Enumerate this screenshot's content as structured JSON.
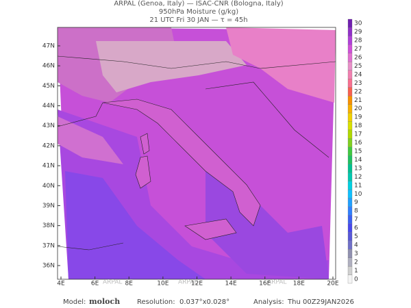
{
  "header": {
    "line1": "ARPAL (Genoa, Italy)  —  ISAC-CNR (Bologna, Italy)",
    "line2": "950hPa Moisture (g/kg)",
    "line3": "21 UTC Fri 30 JAN  —  τ = 45h"
  },
  "map": {
    "lat_ticks": [
      {
        "value": 36,
        "label": "36N"
      },
      {
        "value": 37,
        "label": "37N"
      },
      {
        "value": 38,
        "label": "38N"
      },
      {
        "value": 39,
        "label": "39N"
      },
      {
        "value": 40,
        "label": "40N"
      },
      {
        "value": 41,
        "label": "41N"
      },
      {
        "value": 42,
        "label": "42N"
      },
      {
        "value": 43,
        "label": "43N"
      },
      {
        "value": 44,
        "label": "44N"
      },
      {
        "value": 45,
        "label": "45N"
      },
      {
        "value": 46,
        "label": "46N"
      },
      {
        "value": 47,
        "label": "47N"
      }
    ],
    "lon_ticks": [
      {
        "value": 4,
        "label": "4E"
      },
      {
        "value": 6,
        "label": "6E"
      },
      {
        "value": 8,
        "label": "8E"
      },
      {
        "value": 10,
        "label": "10E"
      },
      {
        "value": 12,
        "label": "12E"
      },
      {
        "value": 14,
        "label": "14E"
      },
      {
        "value": 16,
        "label": "16E"
      },
      {
        "value": 18,
        "label": "18E"
      },
      {
        "value": 20,
        "label": "20E"
      }
    ],
    "watermark": "ARPAL"
  },
  "colorbar": {
    "levels": [
      0,
      1,
      2,
      3,
      4,
      5,
      6,
      7,
      8,
      9,
      10,
      11,
      12,
      13,
      14,
      15,
      16,
      17,
      18,
      19,
      20,
      21,
      22,
      23,
      24,
      25,
      26,
      27,
      28,
      29,
      30
    ],
    "colors": [
      "#f4f4f4",
      "#d0d0d0",
      "#b0b0c0",
      "#9090b0",
      "#7070c8",
      "#5858d8",
      "#4848ec",
      "#3c60f0",
      "#3080ff",
      "#20a0ff",
      "#10c0ff",
      "#00d0e0",
      "#00c8b0",
      "#00c090",
      "#20c060",
      "#40c840",
      "#80d020",
      "#b0d800",
      "#d8e000",
      "#f0d000",
      "#f8b000",
      "#f89000",
      "#f86050",
      "#f87090",
      "#f080b0",
      "#e890c8",
      "#e070d0",
      "#d050d8",
      "#b040d8",
      "#9030c8",
      "#7020b0"
    ]
  },
  "footer": {
    "model_label": "Model:",
    "model": "moloch",
    "resolution_label": "Resolution:",
    "resolution": "0.037°x0.028°",
    "analysis_label": "Analysis:",
    "analysis": "Thu 00Z29JAN2026"
  }
}
